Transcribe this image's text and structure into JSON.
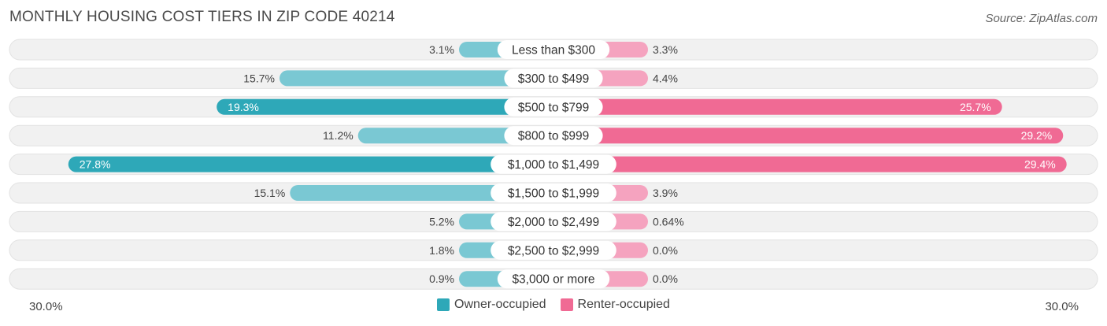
{
  "header": {
    "title": "MONTHLY HOUSING COST TIERS IN ZIP CODE 40214",
    "source": "Source: ZipAtlas.com"
  },
  "axis": {
    "left_label": "30.0%",
    "right_label": "30.0%"
  },
  "legend": {
    "owner_label": "Owner-occupied",
    "renter_label": "Renter-occupied"
  },
  "colors": {
    "owner_dark": "#2ea8b8",
    "owner_light": "#7ac8d3",
    "renter_dark": "#f06a94",
    "renter_light": "#f5a3bf",
    "track": "#eeeeee"
  },
  "chart_data": {
    "type": "bar",
    "orientation": "horizontal-diverging",
    "title": "MONTHLY HOUSING COST TIERS IN ZIP CODE 40214",
    "xlim": [
      -30,
      30
    ],
    "categories": [
      "Less than $300",
      "$300 to $499",
      "$500 to $799",
      "$800 to $999",
      "$1,000 to $1,499",
      "$1,500 to $1,999",
      "$2,000 to $2,499",
      "$2,500 to $2,999",
      "$3,000 or more"
    ],
    "series": [
      {
        "name": "Owner-occupied",
        "values": [
          3.1,
          15.7,
          19.3,
          11.2,
          27.8,
          15.1,
          5.2,
          1.8,
          0.9
        ],
        "labels": [
          "3.1%",
          "15.7%",
          "19.3%",
          "11.2%",
          "27.8%",
          "15.1%",
          "5.2%",
          "1.8%",
          "0.9%"
        ]
      },
      {
        "name": "Renter-occupied",
        "values": [
          3.3,
          4.4,
          25.7,
          29.2,
          29.4,
          3.9,
          0.64,
          0.0,
          0.0
        ],
        "labels": [
          "3.3%",
          "4.4%",
          "25.7%",
          "29.2%",
          "29.4%",
          "3.9%",
          "0.64%",
          "0.0%",
          "0.0%"
        ]
      }
    ],
    "legend_position": "bottom-center"
  }
}
